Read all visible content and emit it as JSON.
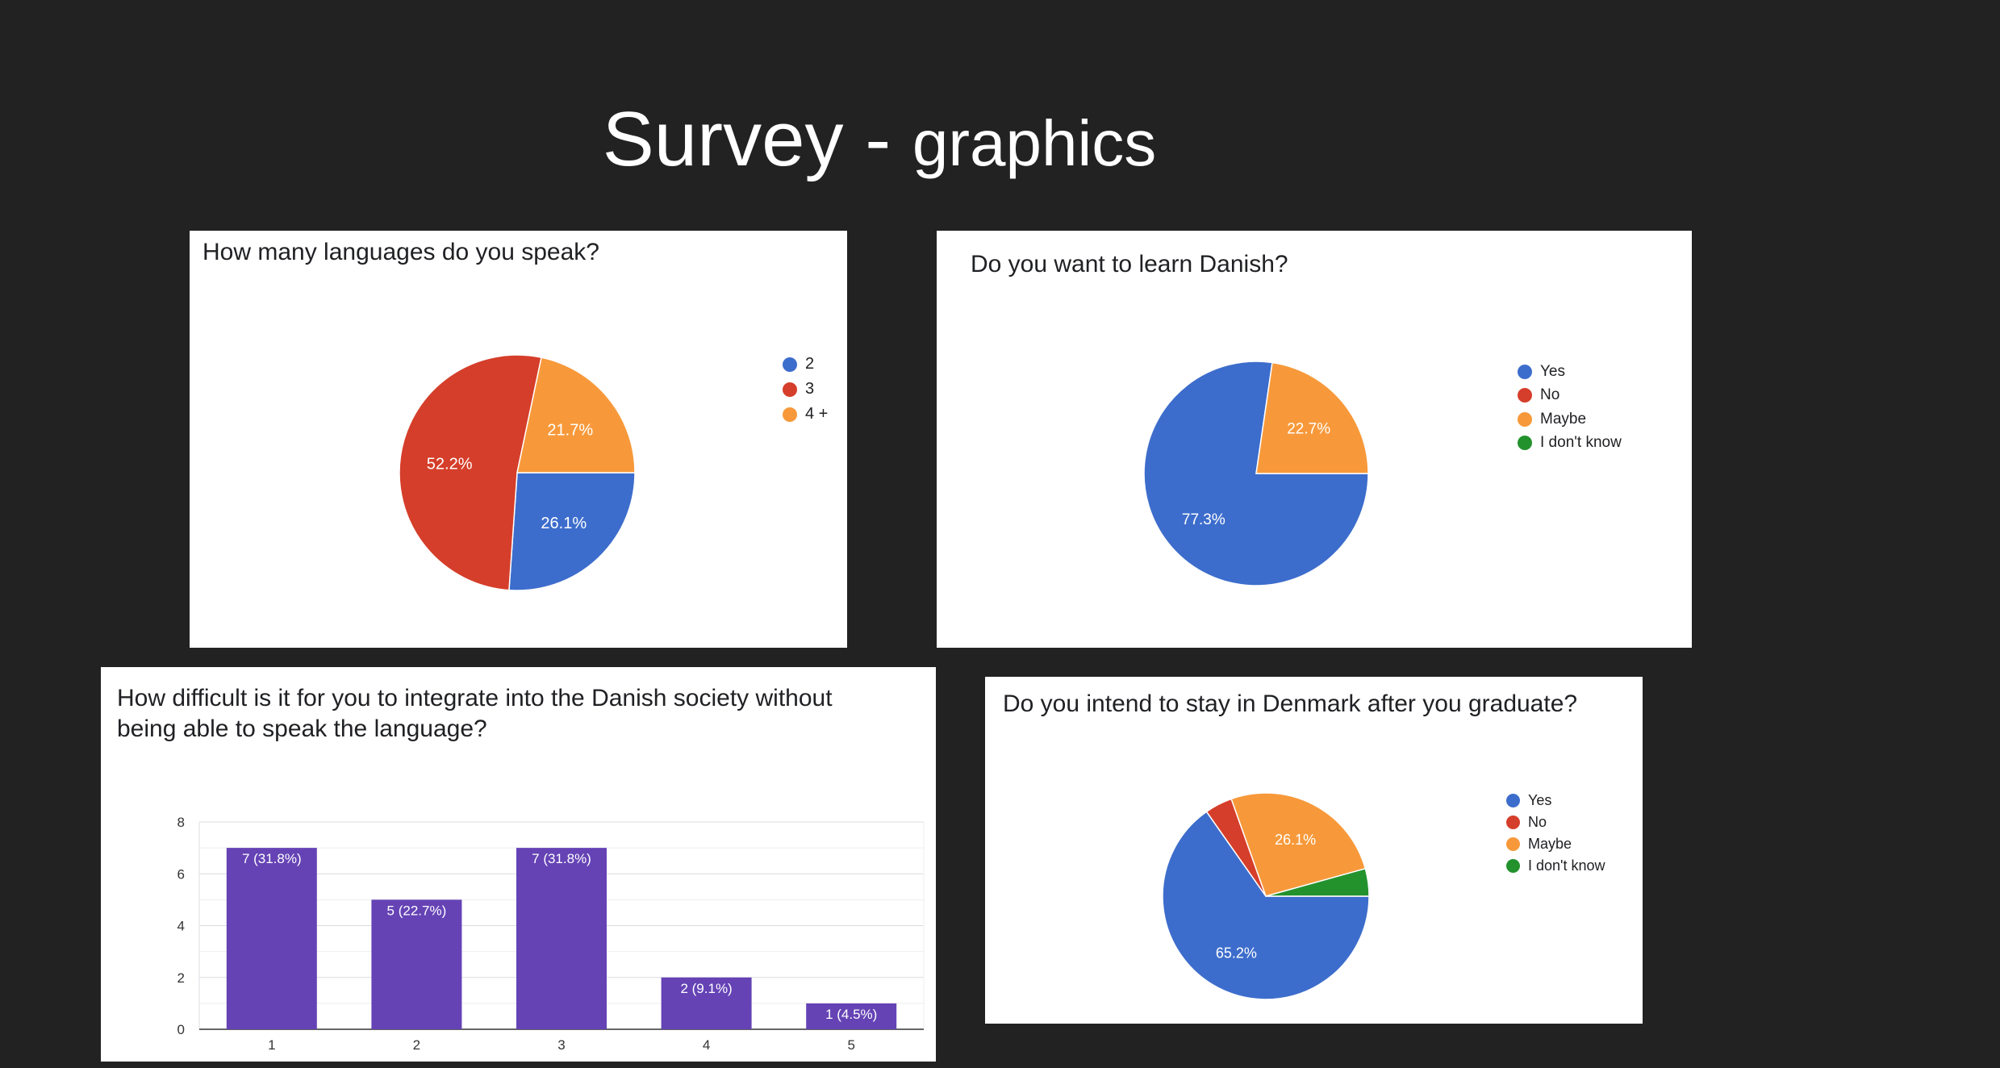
{
  "slide": {
    "title_main": "Survey - ",
    "title_sub": "graphics"
  },
  "chart_data": [
    {
      "type": "pie",
      "title": "How many languages do you speak?",
      "labels": [
        "2",
        "3",
        "4 +"
      ],
      "values": [
        26.1,
        52.2,
        21.7
      ],
      "data_labels": [
        "26.1%",
        "52.2%",
        "21.7%"
      ],
      "colors": [
        "#3d6dcc",
        "#d53e2a",
        "#f7993a"
      ],
      "legend_position": "right"
    },
    {
      "type": "pie",
      "title": "Do you want to learn Danish?",
      "labels": [
        "Yes",
        "No",
        "Maybe",
        "I don't know"
      ],
      "values": [
        77.3,
        0,
        22.7,
        0
      ],
      "data_labels": [
        "77.3%",
        "",
        "22.7%",
        ""
      ],
      "colors": [
        "#3d6dcc",
        "#d53e2a",
        "#f7993a",
        "#23922d"
      ],
      "legend_position": "right"
    },
    {
      "type": "bar",
      "title": "How difficult is it for you to integrate into the Danish society without\nbeing able to speak the language?",
      "categories": [
        "1",
        "2",
        "3",
        "4",
        "5"
      ],
      "values": [
        7,
        5,
        7,
        2,
        1
      ],
      "data_labels": [
        "7 (31.8%)",
        "5 (22.7%)",
        "7 (31.8%)",
        "2 (9.1%)",
        "1 (4.5%)"
      ],
      "yticks": [
        "0",
        "2",
        "4",
        "6",
        "8"
      ],
      "ylim": [
        0,
        8
      ],
      "color": "#6543b5",
      "grid": true
    },
    {
      "type": "pie",
      "title": "Do you intend to stay in Denmark after you graduate?",
      "labels": [
        "Yes",
        "No",
        "Maybe",
        "I don't know"
      ],
      "values": [
        65.2,
        4.3,
        26.1,
        4.3
      ],
      "data_labels": [
        "65.2%",
        "",
        "26.1%",
        ""
      ],
      "colors": [
        "#3d6dcc",
        "#d53e2a",
        "#f7993a",
        "#23922d"
      ],
      "legend_position": "right"
    }
  ]
}
